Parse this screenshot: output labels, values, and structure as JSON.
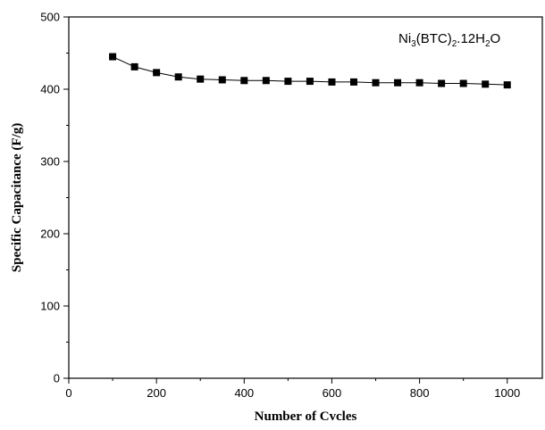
{
  "chart_data": {
    "type": "line",
    "title": "",
    "xlabel": "Number of Cvcles",
    "ylabel": "Specific Capacitance (F/g)",
    "xlim": [
      0,
      1080
    ],
    "ylim": [
      0,
      500
    ],
    "x_ticks": [
      "0",
      "200",
      "400",
      "600",
      "800",
      "1000"
    ],
    "y_ticks": [
      "0",
      "100",
      "200",
      "300",
      "400",
      "500"
    ],
    "grid": false,
    "annotation": {
      "parts": [
        {
          "text": "Ni",
          "sub": false
        },
        {
          "text": "3",
          "sub": true
        },
        {
          "text": "(BTC)",
          "sub": false
        },
        {
          "text": "2",
          "sub": true
        },
        {
          "text": ".12H",
          "sub": false
        },
        {
          "text": "2",
          "sub": true
        },
        {
          "text": "O",
          "sub": false
        }
      ],
      "placement": "top-right"
    },
    "series": [
      {
        "marker": "filled-square",
        "color": "#000000",
        "x": [
          100,
          150,
          200,
          250,
          300,
          350,
          400,
          450,
          500,
          550,
          600,
          650,
          700,
          750,
          800,
          850,
          900,
          950,
          1000
        ],
        "y": [
          445,
          431,
          423,
          417,
          414,
          413,
          412,
          412,
          411,
          411,
          410,
          410,
          409,
          409,
          409,
          408,
          408,
          407,
          406
        ]
      }
    ]
  }
}
